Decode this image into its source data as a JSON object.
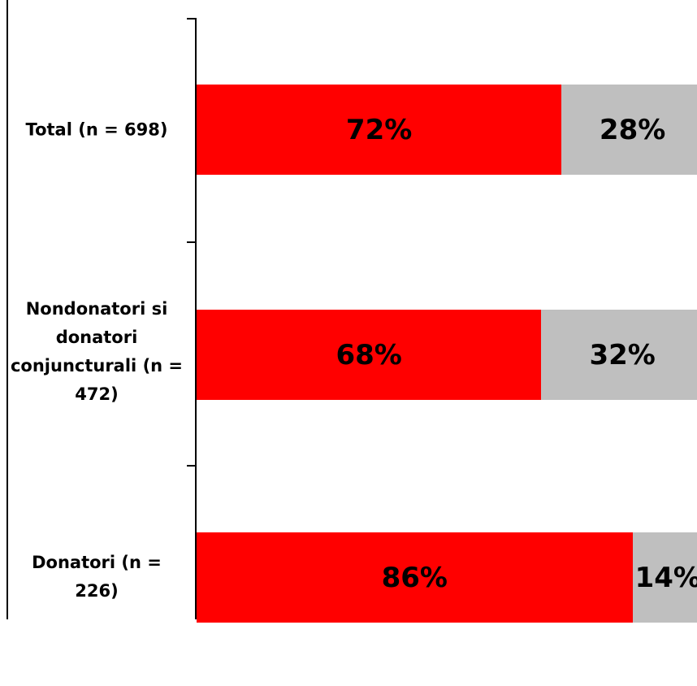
{
  "chart_data": {
    "type": "bar",
    "orientation": "horizontal",
    "stacked": true,
    "categories": [
      "Total (n = 698)",
      "Nondonatori si donatori conjuncturali (n = 472)",
      "Donatori (n = 226)"
    ],
    "series": [
      {
        "values": [
          72,
          68,
          86
        ],
        "labels": [
          "72%",
          "68%",
          "86%"
        ]
      },
      {
        "values": [
          28,
          32,
          14
        ],
        "labels": [
          "28%",
          "32%",
          "14%"
        ]
      }
    ],
    "xlim": [
      0,
      100
    ],
    "grid": false,
    "colors": [
      "#ff0000",
      "#bfbfbf"
    ]
  }
}
